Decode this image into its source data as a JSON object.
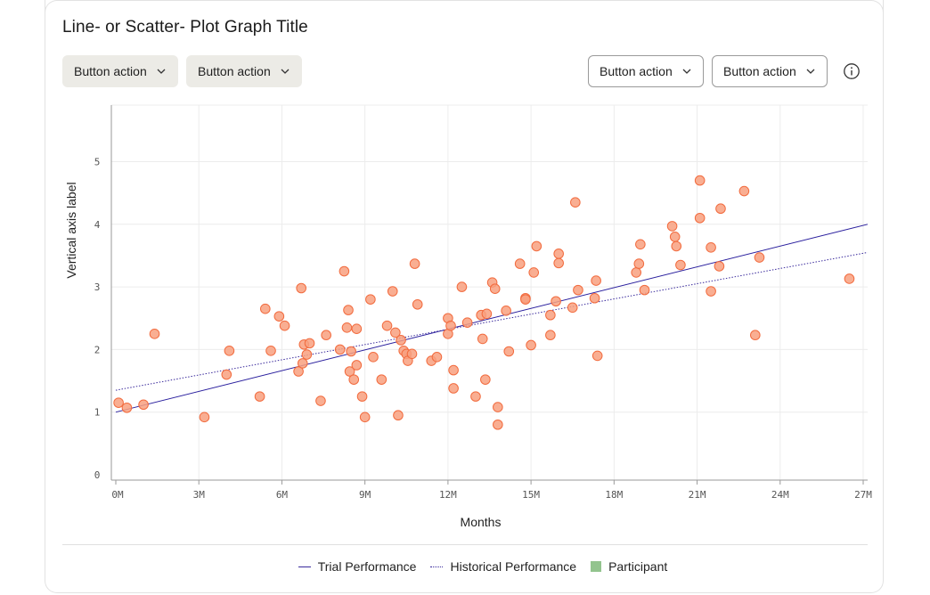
{
  "title": "Line- or Scatter- Plot Graph Title",
  "buttons": {
    "left1": "Button action",
    "left2": "Button action",
    "right1": "Button action",
    "right2": "Button action"
  },
  "icons": {
    "chevron": "chevron-down-icon",
    "info": "info-icon"
  },
  "colors": {
    "points_fill": "#f8a07f",
    "points_stroke": "#f26b3e",
    "trial_line": "#2a1f9e",
    "historical_line": "#3a2a9c",
    "participant": "#93c48e"
  },
  "chart_data": {
    "type": "scatter",
    "xlabel": "Months",
    "ylabel": "Vertical axis label",
    "xlim": [
      0,
      27
    ],
    "ylim": [
      0,
      6
    ],
    "x_ticks": [
      0,
      3,
      6,
      9,
      12,
      15,
      18,
      21,
      24,
      27
    ],
    "x_tick_labels": [
      "0M",
      "3M",
      "6M",
      "9M",
      "12M",
      "15M",
      "18M",
      "21M",
      "24M",
      "27M"
    ],
    "y_ticks": [
      0,
      1,
      2,
      3,
      4,
      5
    ],
    "y_tick_labels": [
      "0",
      "1",
      "2",
      "3",
      "4",
      "5"
    ],
    "grid": true,
    "legend_position": "bottom",
    "legend": [
      "Trial Performance",
      "Historical Performance",
      "Participant"
    ],
    "lines": [
      {
        "name": "Trial Performance",
        "style": "solid",
        "x": [
          0,
          27
        ],
        "y": [
          1.0,
          4.0
        ]
      },
      {
        "name": "Historical Performance",
        "style": "dotted",
        "x": [
          0,
          27
        ],
        "y": [
          1.35,
          3.55
        ]
      }
    ],
    "points": [
      [
        0.1,
        1.15
      ],
      [
        0.4,
        1.07
      ],
      [
        1.0,
        1.12
      ],
      [
        1.4,
        2.25
      ],
      [
        3.2,
        0.92
      ],
      [
        4.0,
        1.6
      ],
      [
        4.1,
        1.98
      ],
      [
        5.2,
        1.25
      ],
      [
        5.4,
        2.65
      ],
      [
        5.6,
        1.98
      ],
      [
        5.9,
        2.53
      ],
      [
        6.1,
        2.38
      ],
      [
        6.6,
        1.65
      ],
      [
        6.7,
        2.98
      ],
      [
        6.75,
        1.78
      ],
      [
        6.8,
        2.08
      ],
      [
        6.9,
        1.92
      ],
      [
        7.0,
        2.1
      ],
      [
        7.4,
        1.18
      ],
      [
        7.6,
        2.23
      ],
      [
        8.1,
        2.0
      ],
      [
        8.25,
        3.25
      ],
      [
        8.35,
        2.35
      ],
      [
        8.4,
        2.63
      ],
      [
        8.45,
        1.65
      ],
      [
        8.5,
        1.97
      ],
      [
        8.6,
        1.52
      ],
      [
        8.7,
        1.75
      ],
      [
        8.7,
        2.33
      ],
      [
        8.9,
        1.25
      ],
      [
        9.0,
        0.92
      ],
      [
        9.2,
        2.8
      ],
      [
        9.3,
        1.88
      ],
      [
        9.6,
        1.52
      ],
      [
        9.8,
        2.38
      ],
      [
        10.0,
        2.93
      ],
      [
        10.1,
        2.27
      ],
      [
        10.2,
        0.95
      ],
      [
        10.3,
        2.15
      ],
      [
        10.4,
        1.98
      ],
      [
        10.5,
        1.93
      ],
      [
        10.55,
        1.82
      ],
      [
        10.7,
        1.93
      ],
      [
        10.8,
        3.37
      ],
      [
        10.9,
        2.72
      ],
      [
        11.4,
        1.82
      ],
      [
        11.6,
        1.88
      ],
      [
        12.0,
        2.5
      ],
      [
        12.0,
        2.25
      ],
      [
        12.1,
        2.38
      ],
      [
        12.2,
        1.38
      ],
      [
        12.2,
        1.67
      ],
      [
        12.5,
        3.0
      ],
      [
        12.7,
        2.43
      ],
      [
        13.0,
        1.25
      ],
      [
        13.2,
        2.55
      ],
      [
        13.25,
        2.17
      ],
      [
        13.35,
        1.52
      ],
      [
        13.4,
        2.57
      ],
      [
        13.6,
        3.07
      ],
      [
        13.7,
        2.97
      ],
      [
        13.8,
        0.8
      ],
      [
        13.8,
        1.08
      ],
      [
        14.1,
        2.62
      ],
      [
        14.2,
        1.97
      ],
      [
        14.6,
        3.37
      ],
      [
        14.8,
        2.82
      ],
      [
        14.8,
        2.8
      ],
      [
        15.0,
        2.07
      ],
      [
        15.1,
        3.23
      ],
      [
        15.2,
        3.65
      ],
      [
        15.7,
        2.23
      ],
      [
        15.7,
        2.55
      ],
      [
        15.9,
        2.77
      ],
      [
        16.0,
        3.38
      ],
      [
        16.0,
        3.53
      ],
      [
        16.5,
        2.67
      ],
      [
        16.6,
        4.35
      ],
      [
        16.7,
        2.95
      ],
      [
        17.3,
        2.82
      ],
      [
        17.35,
        3.1
      ],
      [
        17.4,
        1.9
      ],
      [
        18.8,
        3.23
      ],
      [
        18.9,
        3.37
      ],
      [
        18.95,
        3.68
      ],
      [
        19.1,
        2.95
      ],
      [
        20.1,
        3.97
      ],
      [
        20.2,
        3.8
      ],
      [
        20.25,
        3.65
      ],
      [
        20.4,
        3.35
      ],
      [
        21.1,
        4.7
      ],
      [
        21.1,
        4.1
      ],
      [
        21.5,
        3.63
      ],
      [
        21.5,
        2.93
      ],
      [
        21.8,
        3.33
      ],
      [
        21.85,
        4.25
      ],
      [
        22.7,
        4.53
      ],
      [
        23.1,
        2.23
      ],
      [
        23.25,
        3.47
      ],
      [
        26.5,
        3.13
      ]
    ]
  }
}
